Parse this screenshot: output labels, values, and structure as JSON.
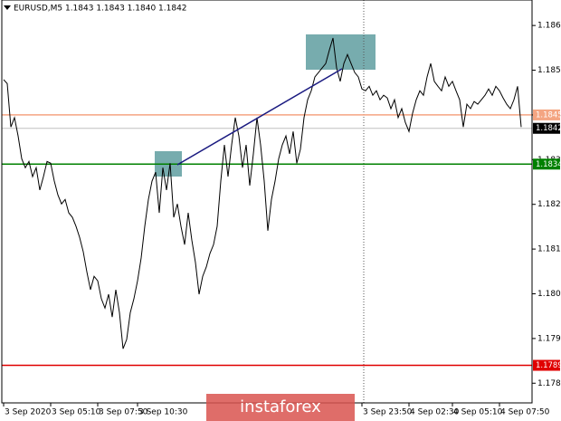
{
  "chart_data": {
    "type": "line",
    "title": "EURUSD,M5  1.1843 1.1843 1.1840 1.1842",
    "watermark": "instaforex",
    "series": [
      {
        "name": "EURUSD",
        "color": "#000000",
        "values": [
          1.18529,
          1.1852,
          1.18423,
          1.18444,
          1.18403,
          1.18352,
          1.18332,
          1.18346,
          1.18312,
          1.18332,
          1.18282,
          1.18312,
          1.18346,
          1.18342,
          1.18302,
          1.18271,
          1.18251,
          1.18261,
          1.18231,
          1.18221,
          1.18201,
          1.18176,
          1.18144,
          1.18099,
          1.18059,
          1.18089,
          1.18079,
          1.18039,
          1.18018,
          1.18049,
          1.17998,
          1.18059,
          1.18008,
          1.17927,
          1.17948,
          1.18008,
          1.18039,
          1.18079,
          1.1813,
          1.18201,
          1.18261,
          1.18302,
          1.18322,
          1.18231,
          1.18332,
          1.18282,
          1.18342,
          1.18221,
          1.18251,
          1.18201,
          1.1816,
          1.18231,
          1.1817,
          1.1812,
          1.18049,
          1.18089,
          1.1811,
          1.1814,
          1.1816,
          1.18201,
          1.18302,
          1.18383,
          1.18312,
          1.18383,
          1.18444,
          1.18403,
          1.18332,
          1.18383,
          1.18292,
          1.18363,
          1.18444,
          1.18383,
          1.18302,
          1.18191,
          1.18261,
          1.18302,
          1.18352,
          1.18383,
          1.18403,
          1.18363,
          1.18413,
          1.18342,
          1.18373,
          1.18444,
          1.18484,
          1.18504,
          1.18535,
          1.18545,
          1.18555,
          1.18565,
          1.18595,
          1.18622,
          1.18555,
          1.18525,
          1.18565,
          1.18585,
          1.18565,
          1.18545,
          1.18535,
          1.18508,
          1.18504,
          1.18514,
          1.18494,
          1.18504,
          1.18484,
          1.18494,
          1.18488,
          1.18464,
          1.18484,
          1.18444,
          1.18464,
          1.18433,
          1.18413,
          1.18454,
          1.18484,
          1.18504,
          1.18494,
          1.18535,
          1.18565,
          1.18525,
          1.18514,
          1.18504,
          1.18535,
          1.18514,
          1.18525,
          1.18504,
          1.18484,
          1.18423,
          1.18474,
          1.18464,
          1.1848,
          1.18474,
          1.18484,
          1.18494,
          1.18508,
          1.18494,
          1.18514,
          1.18504,
          1.18488,
          1.18474,
          1.18464,
          1.18484,
          1.18514,
          1.18423
        ]
      }
    ],
    "xlim": [
      -0.5,
      146
    ],
    "xticks": [
      {
        "value": 0,
        "label": "3 Sep 2020"
      },
      {
        "value": 13,
        "label": "3 Sep 05:10"
      },
      {
        "value": 26,
        "label": "3 Sep 07:50"
      },
      {
        "value": 37,
        "label": "3 Sep 10:30"
      },
      {
        "value": 99,
        "label": "3 Sep 23:50"
      },
      {
        "value": 112,
        "label": "4 Sep 02:30"
      },
      {
        "value": 124,
        "label": "4 Sep 05:10"
      },
      {
        "value": 137,
        "label": "4 Sep 07:50"
      }
    ],
    "ylim": [
      1.17806,
      1.18707
    ],
    "yticks": [
      1.1785,
      1.1795,
      1.1805,
      1.1815,
      1.1825,
      1.1835,
      1.1845,
      1.1855,
      1.1865
    ],
    "levels": [
      {
        "value": 1.1845,
        "color": "#f4a582"
      },
      {
        "value": 1.1842,
        "color": "#c0c0c0"
      },
      {
        "value": 1.1834,
        "color": "#008000"
      },
      {
        "value": 1.1789,
        "color": "#e00000"
      }
    ]
  }
}
